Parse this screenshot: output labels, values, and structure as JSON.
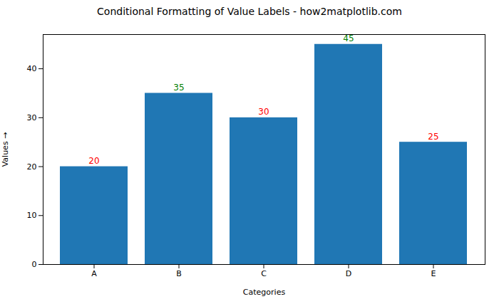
{
  "chart_data": {
    "type": "bar",
    "title": "Conditional Formatting of Value Labels - how2matplotlib.com",
    "xlabel": "Categories",
    "ylabel": "Values",
    "categories": [
      "A",
      "B",
      "C",
      "D",
      "E"
    ],
    "values": [
      20,
      35,
      30,
      45,
      25
    ],
    "color": "#2077B4",
    "label_colors": [
      "red",
      "green",
      "red",
      "green",
      "red"
    ],
    "data_labels": true,
    "ylim": [
      0,
      47
    ],
    "yticks": [
      0,
      10,
      20,
      30,
      40
    ],
    "grid": false
  }
}
